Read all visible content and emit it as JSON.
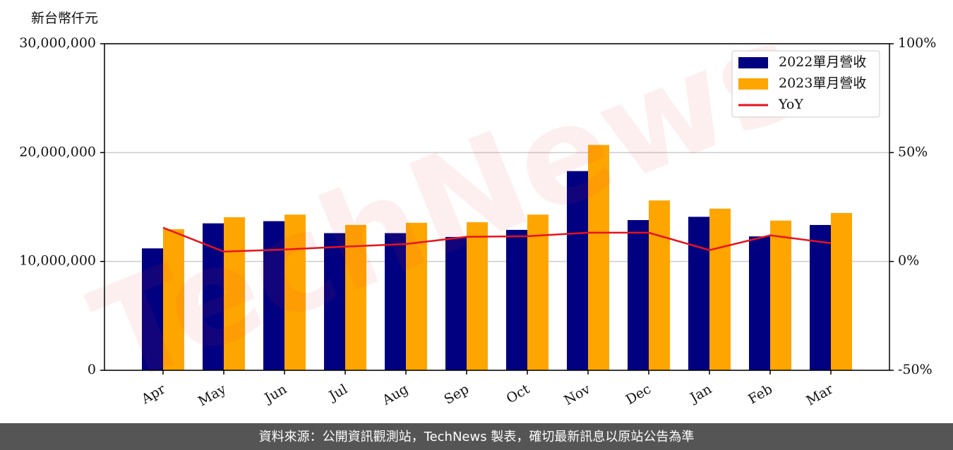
{
  "chart_data": {
    "type": "bar_line",
    "y_label": "新台幣仟元",
    "watermark": "TechNews",
    "footer": "資料來源：公開資訊觀測站，TechNews 製表，確切最新訊息以原站公告為準",
    "categories": [
      "Apr",
      "May",
      "Jun",
      "Jul",
      "Aug",
      "Sep",
      "Oct",
      "Nov",
      "Dec",
      "Jan",
      "Feb",
      "Mar"
    ],
    "series": [
      {
        "name": "2022單月營收",
        "color": "#000080",
        "type": "bar",
        "values": [
          11200000,
          13500000,
          13700000,
          12600000,
          12600000,
          12250000,
          12900000,
          18300000,
          13800000,
          14100000,
          12300000,
          13350000
        ]
      },
      {
        "name": "2023單月營收",
        "color": "#ffa500",
        "type": "bar",
        "values": [
          12960000,
          14060000,
          14300000,
          13350000,
          13550000,
          13600000,
          14300000,
          20700000,
          15600000,
          14850000,
          13750000,
          14450000
        ]
      },
      {
        "name": "YoY",
        "color": "#e8121c",
        "type": "line",
        "axis": "y2",
        "values": [
          15.5,
          4.5,
          5.5,
          6.8,
          8,
          11.3,
          11.6,
          13.2,
          13.2,
          5.2,
          12,
          8.4
        ]
      }
    ],
    "ylim": [
      0,
      30000000
    ],
    "yticks": [
      0,
      {
        "value": 10000000,
        "label": "10,000,000"
      },
      {
        "value": 20000000,
        "label": "20,000,000"
      },
      {
        "value": 30000000,
        "label": "30,000,000"
      }
    ],
    "y2lim": [
      -50,
      100
    ],
    "y2ticks": [
      {
        "value": -50,
        "label": "-50%"
      },
      {
        "value": 0,
        "label": "0%"
      },
      {
        "value": 50,
        "label": "50%"
      },
      {
        "value": 100,
        "label": "100%"
      }
    ],
    "grid": true,
    "legend": "upper right"
  }
}
